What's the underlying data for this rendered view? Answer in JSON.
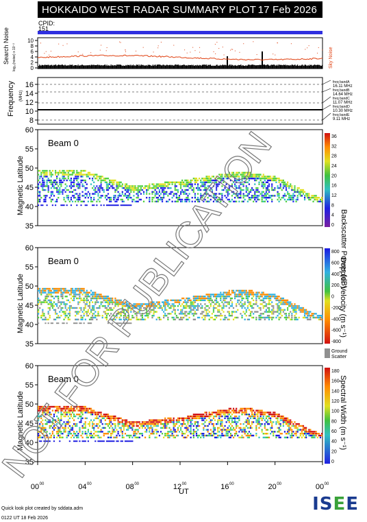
{
  "header": {
    "title": "HOKKAIDO WEST RADAR SUMMARY PLOT",
    "date": "17 Feb 2026"
  },
  "cpid": {
    "label": "CPID:",
    "value": "151"
  },
  "noise_panel": {
    "ylabel_main": "Search Noise",
    "ylabel_sub": "log₁₀(noise) x 10⁻²",
    "right_label": "Sky Noise",
    "ticks": [
      "10",
      "8",
      "6",
      "4",
      "2",
      "0"
    ]
  },
  "freq_panel": {
    "ylabel_main": "Frequency",
    "ylabel_sub": "(MHz)",
    "ticks": [
      "16",
      "14",
      "12",
      "10",
      "8"
    ],
    "bands": [
      {
        "name": "freq bandA",
        "value": "16.11 MHz"
      },
      {
        "name": "freq bandB",
        "value": "14.64 MHz"
      },
      {
        "name": "freq bandC",
        "value": "11.07 MHz"
      },
      {
        "name": "freq bandD",
        "value": "10.30 MHz"
      },
      {
        "name": "freq bandE",
        "value": "9.11 MHz"
      }
    ]
  },
  "beam_label": "Beam  0",
  "ylabel": "Magnetic Latitude",
  "lat_ticks": [
    "60",
    "55",
    "50",
    "45",
    "40",
    "35"
  ],
  "xlabel": "UT",
  "x_ticks": [
    "00",
    "04",
    "08",
    "12",
    "16",
    "20",
    "00"
  ],
  "x_tick_sup": "00",
  "panels": [
    {
      "name": "Backscatter Power (dB)",
      "scale": [
        "36",
        "32",
        "28",
        "24",
        "20",
        "16",
        "12",
        "8",
        "4",
        "0"
      ]
    },
    {
      "name": "Doppler Velocity (m s⁻¹)",
      "scale": [
        "800",
        "600",
        "400",
        "200",
        "0",
        "-200",
        "-400",
        "-600",
        "-800"
      ],
      "ground": "Ground",
      "ground2": "Scatter"
    },
    {
      "name": "Spectral Width (m s⁻¹)",
      "scale": [
        "180",
        "160",
        "140",
        "120",
        "100",
        "80",
        "60",
        "40",
        "20",
        "0"
      ]
    }
  ],
  "watermark": "NOT FOR PUBLICATION",
  "footer": {
    "line1": "Quick look plot created by sddata.adm",
    "line2": "0122 UT 18 Feb 2026"
  },
  "logo": {
    "text_a": "IS",
    "text_b": "E",
    "text_c": "E"
  },
  "chart_data": {
    "type": "heatmap",
    "title": "HOKKAIDO WEST RADAR SUMMARY PLOT",
    "x_range_ut_hours": [
      0,
      24
    ],
    "y_range_mlat": [
      35,
      60
    ],
    "beam": 0,
    "freq_bands_mhz": [
      16.11,
      14.64,
      11.07,
      10.3,
      9.11
    ],
    "scatter_upper_edge": [
      [
        0,
        49
      ],
      [
        4,
        49
      ],
      [
        8,
        45
      ],
      [
        12,
        46.5
      ],
      [
        14,
        47.5
      ],
      [
        16,
        48.5
      ],
      [
        18,
        48.5
      ],
      [
        20,
        47.5
      ],
      [
        21,
        46
      ],
      [
        23,
        43
      ],
      [
        24,
        42
      ]
    ],
    "colors": {
      "cpid_bar": "#3030e0",
      "noise": "#e04010",
      "scatter_blue": "#1a1ae0",
      "scatter_green": "#50d040",
      "scatter_orange": "#ff8c00",
      "ground_grey": "#909090"
    }
  }
}
